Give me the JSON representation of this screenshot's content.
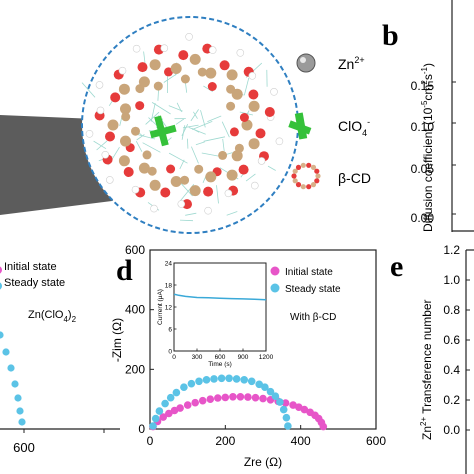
{
  "panels": {
    "b": "b",
    "d": "d",
    "e": "e"
  },
  "legend_top": {
    "zn": "Zn",
    "zn_sup": "2+",
    "clo4": "ClO",
    "clo4_sub": "4",
    "clo4_sup": "-",
    "bcd": "β-CD"
  },
  "panel_b": {
    "ylabel": "Diffusion coefficient (10",
    "ylabel_sup": "-5",
    "ylabel_mid": "cm",
    "ylabel_sup2": "2",
    "ylabel_end": "s",
    "ylabel_sup3": "-1",
    "ylabel_close": ")",
    "ticks": [
      "0.15",
      "0.10",
      "0.05",
      "0.00"
    ]
  },
  "panel_c": {
    "legend": [
      "Initial state",
      "Steady state"
    ],
    "note": "Zn(ClO",
    "note_sub": "4",
    "note_end": ")",
    "note_sub2": "2",
    "xtick": "600"
  },
  "panel_e": {
    "ylabel": "Zn",
    "ylabel_sup": "2+",
    "ylabel_rest": " Transference number",
    "ticks": [
      "1.2",
      "1.0",
      "0.8",
      "0.6",
      "0.4",
      "0.2",
      "0.0"
    ]
  },
  "colors": {
    "initial": "#e755c8",
    "steady": "#5bc3e6",
    "inset_line": "#3aa9d8"
  },
  "chart_data": [
    {
      "type": "scatter",
      "panel": "d",
      "title": "",
      "xlabel": "Zre (Ω)",
      "ylabel": "-Zim (Ω)",
      "xlim": [
        0,
        600
      ],
      "ylim": [
        0,
        600
      ],
      "xticks": [
        "0",
        "200",
        "400",
        "600"
      ],
      "yticks": [
        "0",
        "200",
        "400",
        "600"
      ],
      "legend_position": "top-right",
      "annotation": "With β-CD",
      "series": [
        {
          "name": "Initial state",
          "x": [
            8,
            20,
            35,
            50,
            65,
            80,
            100,
            120,
            140,
            160,
            180,
            200,
            220,
            240,
            260,
            280,
            300,
            320,
            340,
            360,
            380,
            395,
            410,
            425,
            438,
            448,
            455,
            460
          ],
          "y": [
            8,
            25,
            40,
            52,
            62,
            70,
            80,
            88,
            95,
            100,
            104,
            106,
            108,
            108,
            107,
            105,
            102,
            98,
            93,
            87,
            80,
            73,
            65,
            56,
            46,
            35,
            22,
            8
          ]
        },
        {
          "name": "Steady state",
          "x": [
            8,
            15,
            25,
            40,
            55,
            70,
            90,
            110,
            130,
            150,
            170,
            190,
            210,
            230,
            250,
            270,
            290,
            305,
            320,
            333,
            345,
            355,
            362,
            366
          ],
          "y": [
            10,
            35,
            60,
            85,
            105,
            122,
            140,
            152,
            160,
            165,
            168,
            170,
            170,
            168,
            165,
            160,
            150,
            140,
            125,
            110,
            90,
            65,
            38,
            10
          ]
        }
      ],
      "inset": {
        "type": "line",
        "xlabel": "Time (s)",
        "ylabel": "Current (μA)",
        "xlim": [
          0,
          1200
        ],
        "ylim": [
          0,
          24
        ],
        "xticks": [
          "0",
          "300",
          "600",
          "900",
          "1200"
        ],
        "yticks": [
          "0",
          "6",
          "12",
          "18",
          "24"
        ],
        "x": [
          0,
          20,
          60,
          150,
          300,
          450,
          600,
          750,
          900,
          1050,
          1200
        ],
        "y": [
          15.4,
          15.4,
          15.2,
          14.9,
          14.6,
          14.5,
          14.4,
          14.3,
          14.2,
          14.1,
          14.0
        ]
      }
    }
  ]
}
